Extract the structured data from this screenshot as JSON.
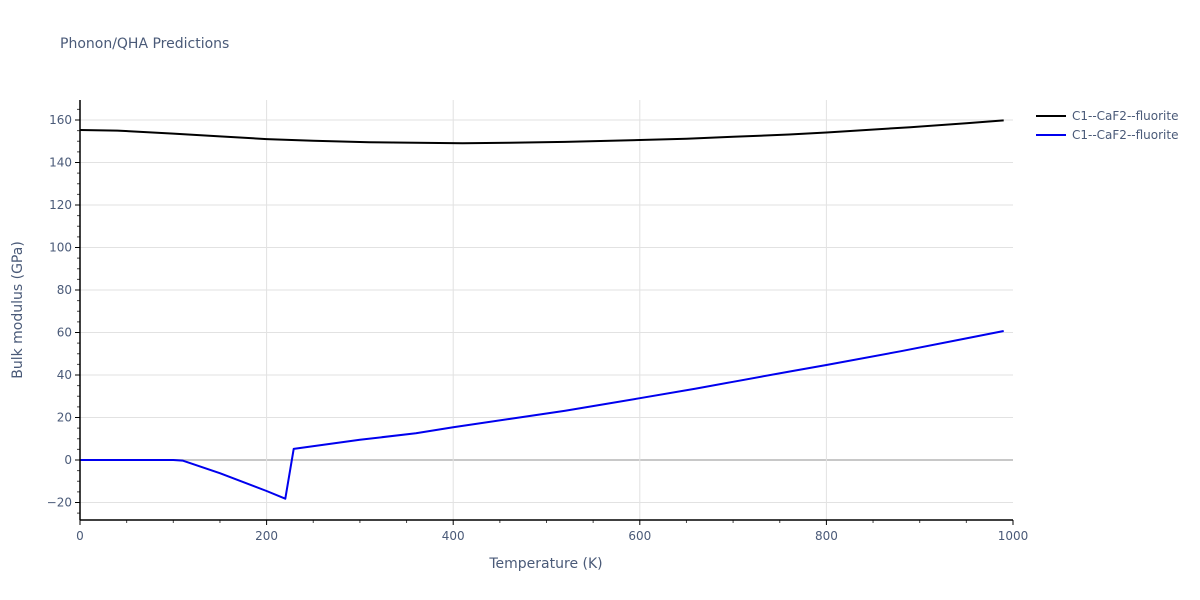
{
  "chart_data": {
    "type": "line",
    "title": "Phonon/QHA Predictions",
    "xlabel": "Temperature (K)",
    "ylabel": "Bulk modulus (GPa)",
    "xlim": [
      0,
      1000
    ],
    "ylim": [
      -28,
      170
    ],
    "x_ticks": [
      0,
      200,
      400,
      600,
      800,
      1000
    ],
    "y_ticks": [
      -20,
      0,
      20,
      40,
      60,
      80,
      100,
      120,
      140,
      160
    ],
    "grid": true,
    "legend_position": "right-top",
    "series": [
      {
        "name": "C1--CaF2--fluorite",
        "color": "#000000",
        "x": [
          0,
          40,
          100,
          150,
          200,
          250,
          310,
          360,
          410,
          460,
          520,
          600,
          650,
          700,
          760,
          800,
          890,
          950,
          990
        ],
        "values": [
          155.3,
          155.0,
          153.6,
          152.3,
          151.0,
          150.2,
          149.5,
          149.3,
          149.1,
          149.3,
          149.7,
          150.6,
          151.2,
          152.1,
          153.2,
          154.1,
          156.6,
          158.5,
          159.8
        ]
      },
      {
        "name": "C1--CaF2--fluorite",
        "color": "#0000ee",
        "x": [
          0,
          50,
          100,
          110,
          150,
          200,
          220,
          229,
          300,
          360,
          400,
          460,
          520,
          560,
          600,
          660,
          700,
          760,
          800,
          880,
          950,
          990
        ],
        "values": [
          0,
          0,
          0,
          -0.3,
          -6.2,
          -14.6,
          -18.2,
          5.2,
          9.5,
          12.6,
          15.4,
          19.3,
          23.2,
          26.1,
          29.1,
          33.6,
          36.8,
          41.6,
          44.7,
          51.2,
          57.2,
          60.7
        ]
      }
    ]
  },
  "legend": {
    "items": [
      {
        "label": "C1--CaF2--fluorite",
        "color": "#000000"
      },
      {
        "label": "C1--CaF2--fluorite",
        "color": "#0000ee"
      }
    ]
  }
}
